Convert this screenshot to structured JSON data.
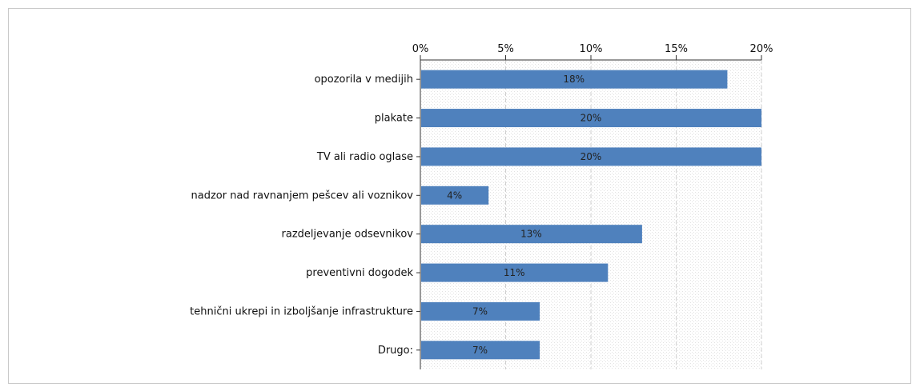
{
  "chart_data": {
    "type": "bar",
    "orientation": "horizontal",
    "categories": [
      "opozorila v medijih",
      "plakate",
      "TV ali radio oglase",
      "nadzor nad ravnanjem pešcev ali voznikov",
      "razdeljevanje odsevnikov",
      "preventivni dogodek",
      "tehnični ukrepi in izboljšanje infrastrukture",
      "Drugo:"
    ],
    "values": [
      18,
      20,
      20,
      4,
      13,
      11,
      7,
      7
    ],
    "data_labels": [
      "18%",
      "20%",
      "20%",
      "4%",
      "13%",
      "11%",
      "7%",
      "7%"
    ],
    "xlim": [
      0,
      20
    ],
    "x_ticks": [
      0,
      5,
      10,
      15,
      20
    ],
    "x_tick_labels": [
      "0%",
      "5%",
      "10%",
      "15%",
      "20%"
    ],
    "x_axis_position": "top",
    "grid": true,
    "bar_color": "#4f81bd"
  }
}
